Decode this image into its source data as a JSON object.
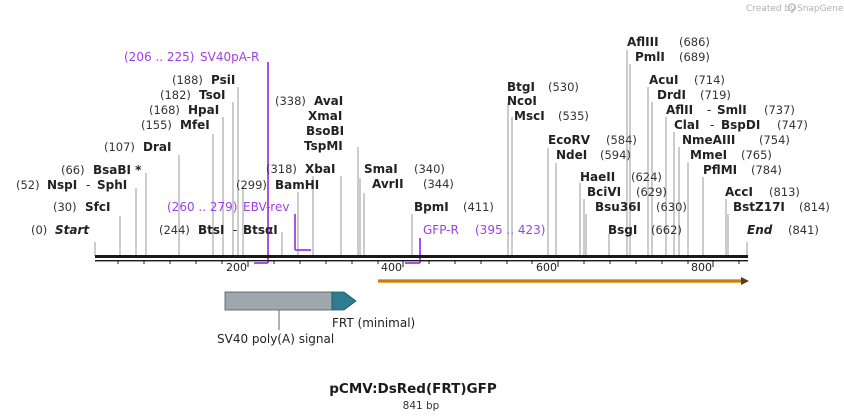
{
  "credit": "Created by",
  "brand": "SnapGene",
  "title": "pCMV:DsRed(FRT)GFP",
  "length_label": "841 bp",
  "ticks": [
    "200",
    "400",
    "600",
    "800"
  ],
  "ends": {
    "start_pos": "(0)",
    "start": "Start",
    "end": "End",
    "end_pos": "(841)"
  },
  "sites": {
    "sv40pa": {
      "pos": "(206 .. 225)",
      "name": "SV40pA-R"
    },
    "psii": {
      "pos": "(188)",
      "name": "PsiI"
    },
    "tsoi": {
      "pos": "(182)",
      "name": "TsoI"
    },
    "hpai": {
      "pos": "(168)",
      "name": "HpaI"
    },
    "mfei": {
      "pos": "(155)",
      "name": "MfeI"
    },
    "drai": {
      "pos": "(107)",
      "name": "DraI"
    },
    "bsabi": {
      "pos": "(66)",
      "name": "BsaBI *"
    },
    "nspi": {
      "pos": "(52)",
      "name": "NspI",
      "sep": "-",
      "name2": "SphI"
    },
    "sfci": {
      "pos": "(30)",
      "name": "SfcI"
    },
    "ebv": {
      "pos": "(260 .. 279)",
      "name": "EBV-rev"
    },
    "btsi": {
      "pos": "(244)",
      "name": "BtsI",
      "sep": "-",
      "name2": "BtsαI"
    },
    "bamhi": {
      "pos": "(299)",
      "name": "BamHI"
    },
    "xbai": {
      "pos": "(318)",
      "name": "XbaI"
    },
    "avai": {
      "pos": "(338)",
      "name": "AvaI"
    },
    "xmai": {
      "name": "XmaI"
    },
    "bsobi": {
      "name": "BsoBI"
    },
    "tspmi": {
      "name": "TspMI"
    },
    "smai": {
      "name": "SmaI",
      "pos": "(340)"
    },
    "avrii": {
      "name": "AvrII",
      "pos": "(344)"
    },
    "bpmi": {
      "name": "BpmI",
      "pos": "(411)"
    },
    "gfpr": {
      "name": "GFP-R",
      "pos": "(395 .. 423)"
    },
    "btgi": {
      "name": "BtgI",
      "pos": "(530)"
    },
    "ncoi": {
      "name": "NcoI"
    },
    "msci": {
      "name": "MscI",
      "pos": "(535)"
    },
    "ecorv": {
      "name": "EcoRV",
      "pos": "(584)"
    },
    "ndei": {
      "name": "NdeI",
      "pos": "(594)"
    },
    "haeii": {
      "name": "HaeII",
      "pos": "(624)"
    },
    "bcivi": {
      "name": "BciVI",
      "pos": "(629)"
    },
    "bsu36i": {
      "name": "Bsu36I",
      "pos": "(630)"
    },
    "bsgi": {
      "name": "BsgI",
      "pos": "(662)"
    },
    "afliii": {
      "name": "AflIII",
      "pos": "(686)"
    },
    "pmli": {
      "name": "PmlI",
      "pos": "(689)"
    },
    "acui": {
      "name": "AcuI",
      "pos": "(714)"
    },
    "drdi": {
      "name": "DrdI",
      "pos": "(719)"
    },
    "aflii": {
      "name": "AflII",
      "sep": "-",
      "name2": "SmlI",
      "pos": "(737)"
    },
    "clai": {
      "name": "ClaI",
      "sep": "-",
      "name2": "BspDI",
      "pos": "(747)"
    },
    "nmeaiii": {
      "name": "NmeAIII",
      "pos": "(754)"
    },
    "mmei": {
      "name": "MmeI",
      "pos": "(765)"
    },
    "pflmi": {
      "name": "PflMI",
      "pos": "(784)"
    },
    "acci": {
      "name": "AccI",
      "pos": "(813)"
    },
    "bstz17i": {
      "name": "BstZ17I",
      "pos": "(814)"
    }
  },
  "features": {
    "sv40": "SV40 poly(A) signal",
    "frt": "FRT (minimal)"
  },
  "colors": {
    "primer": "#a03fe0",
    "sv40_fill": "#9ea6ae",
    "frt_fill": "#2e7c8f",
    "orf_line": "#f0a83a",
    "backbone": "#1a1a1a"
  }
}
